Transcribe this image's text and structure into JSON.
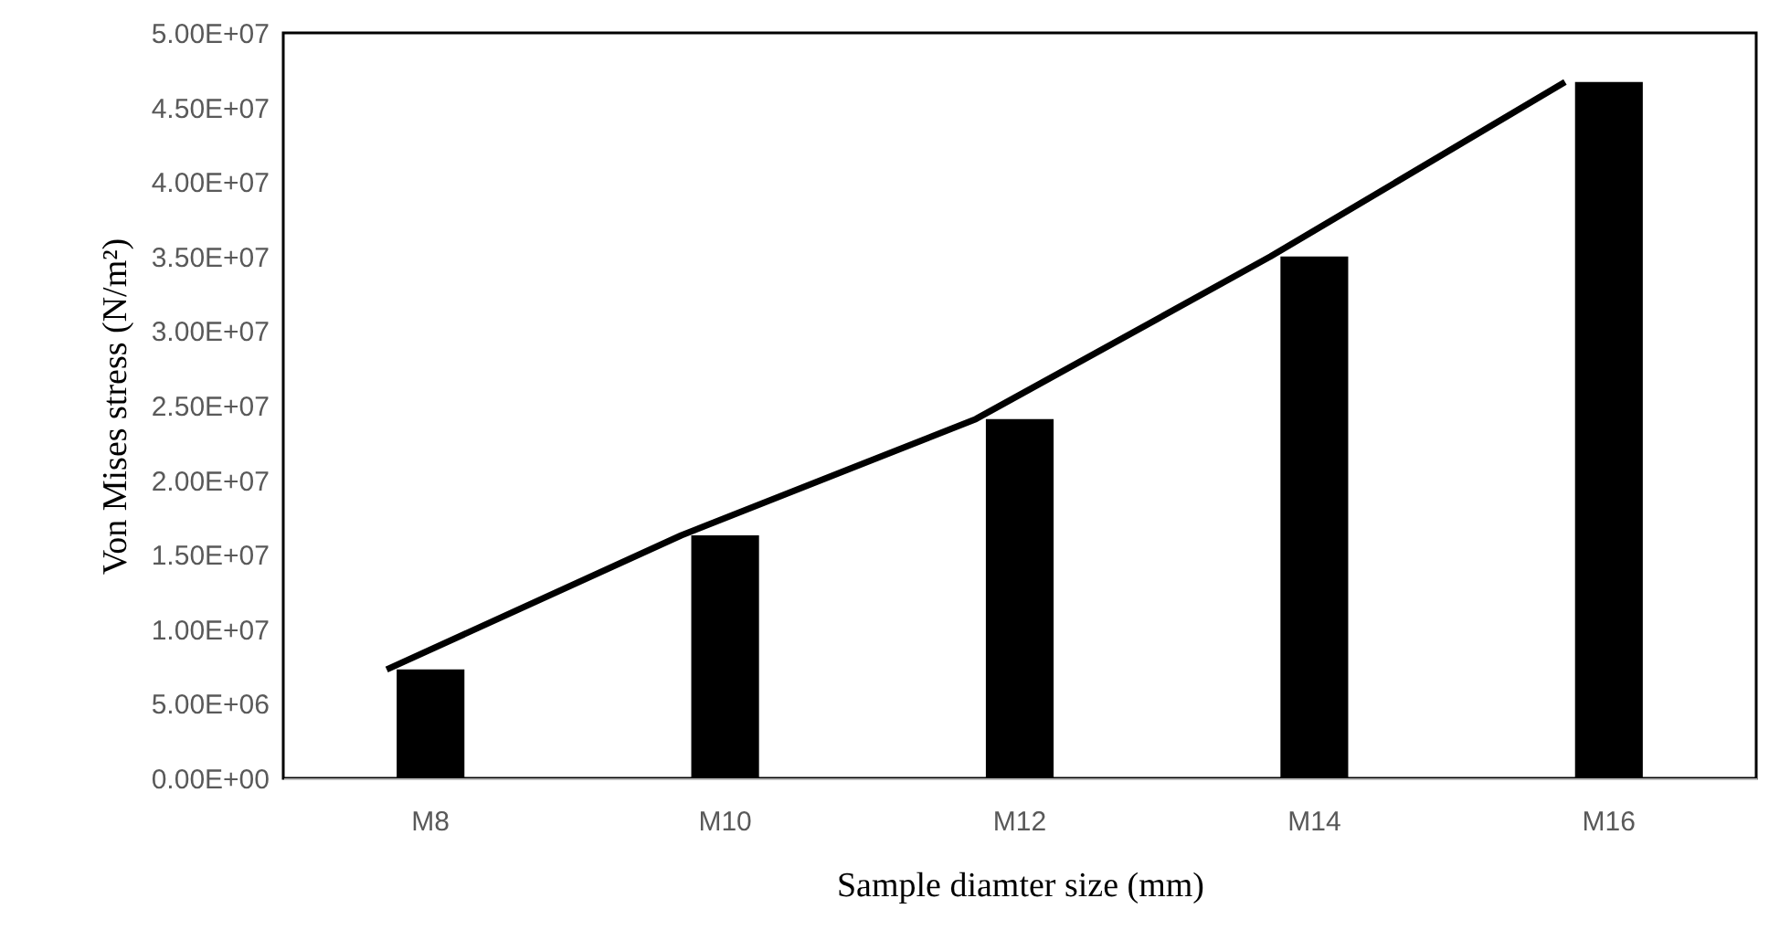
{
  "chart_data": {
    "type": "bar",
    "xlabel": "Sample diamter size (mm)",
    "ylabel": "Von Mises stress (N/m²)",
    "categories": [
      "M8",
      "M10",
      "M12",
      "M14",
      "M16"
    ],
    "series": [
      {
        "color": "#000000",
        "values": [
          7300000,
          16300000,
          24100000,
          35000000,
          46700000
        ]
      },
      {
        "type": "line",
        "color": "#000000",
        "values": [
          7300000,
          16300000,
          24100000,
          35000000,
          46700000
        ]
      }
    ],
    "ylim": [
      0,
      50000000
    ],
    "yticks": [
      {
        "value": 0,
        "label": "0.00E+00"
      },
      {
        "value": 5000000,
        "label": "5.00E+06"
      },
      {
        "value": 10000000,
        "label": "1.00E+07"
      },
      {
        "value": 15000000,
        "label": "1.50E+07"
      },
      {
        "value": 20000000,
        "label": "2.00E+07"
      },
      {
        "value": 25000000,
        "label": "2.50E+07"
      },
      {
        "value": 30000000,
        "label": "3.00E+07"
      },
      {
        "value": 35000000,
        "label": "3.50E+07"
      },
      {
        "value": 40000000,
        "label": "4.00E+07"
      },
      {
        "value": 45000000,
        "label": "4.50E+07"
      },
      {
        "value": 50000000,
        "label": "5.00E+07"
      }
    ],
    "grid": false
  }
}
